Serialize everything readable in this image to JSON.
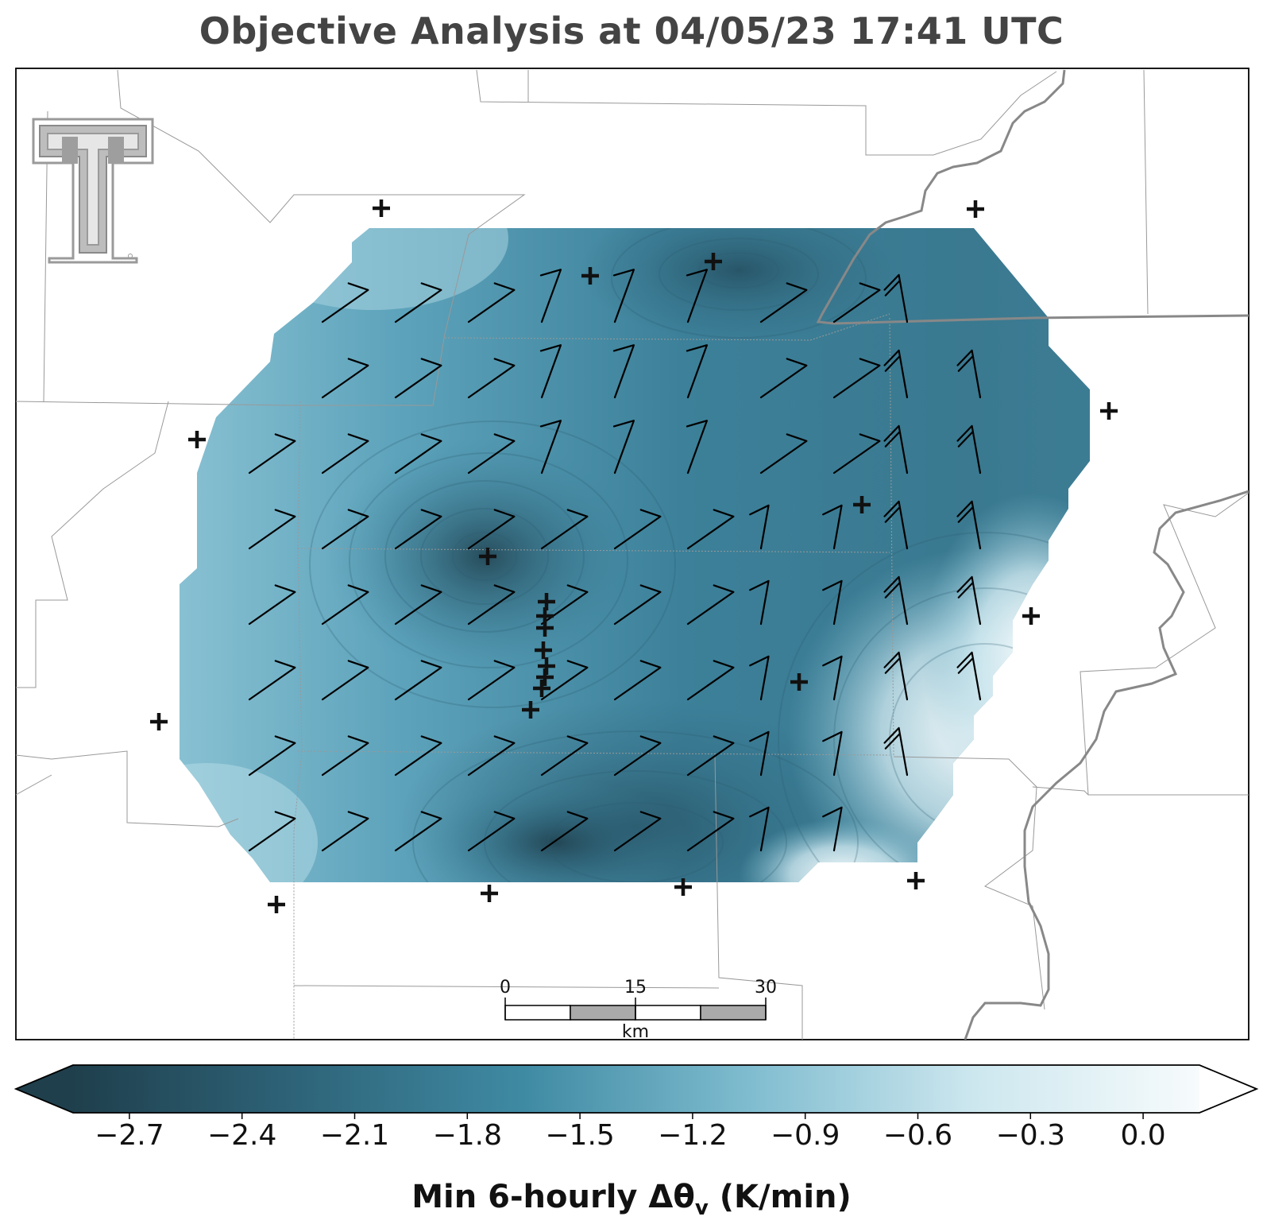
{
  "title": "Objective Analysis at 04/05/23 17:41 UTC",
  "colorbar": {
    "label_main": "Min 6-hourly Δθ",
    "label_sub": "v",
    "label_unit": " (K/min)",
    "ticks": [
      "−2.7",
      "−2.4",
      "−2.1",
      "−1.8",
      "−1.5",
      "−1.2",
      "−0.9",
      "−0.6",
      "−0.3",
      "0.0"
    ],
    "tick_values": [
      -2.7,
      -2.4,
      -2.1,
      -1.8,
      -1.5,
      -1.2,
      -0.9,
      -0.6,
      -0.3,
      0.0
    ],
    "range": [
      -2.85,
      0.15
    ],
    "colors": [
      "#1f3f4c",
      "#2e6479",
      "#3f8aa3",
      "#7fbccf",
      "#cde7ef",
      "#f7fbfc"
    ],
    "extend": "both"
  },
  "scalebar": {
    "labels": [
      "0",
      "15",
      "30"
    ],
    "unit": "km"
  },
  "logo": "texas-tech-double-t-logo",
  "colors": {
    "title": "#444444",
    "border_state": "#888888",
    "border_county": "#999999",
    "station": "#111111"
  }
}
